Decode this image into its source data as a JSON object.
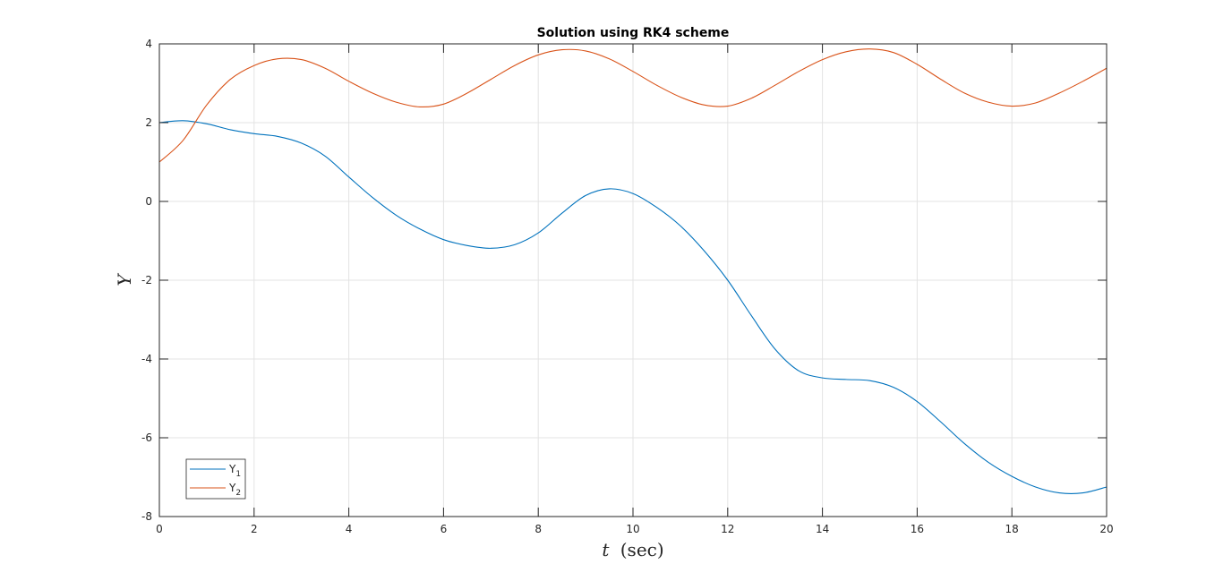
{
  "chart_data": {
    "type": "line",
    "title": "Solution using RK4 scheme",
    "xlabel_var": "t",
    "xlabel_unit": "(sec)",
    "ylabel": "Y",
    "xlim": [
      0,
      20
    ],
    "ylim": [
      -8,
      4
    ],
    "xticks": [
      0,
      2,
      4,
      6,
      8,
      10,
      12,
      14,
      16,
      18,
      20
    ],
    "yticks": [
      -8,
      -6,
      -4,
      -2,
      0,
      2,
      4
    ],
    "grid": true,
    "legend_position": "bottom-left",
    "series": [
      {
        "legend_main": "Y",
        "legend_sub": "1",
        "color": "#0072BD",
        "points": [
          [
            0,
            2.0
          ],
          [
            0.5,
            2.05
          ],
          [
            1,
            1.97
          ],
          [
            1.5,
            1.82
          ],
          [
            2,
            1.72
          ],
          [
            2.5,
            1.65
          ],
          [
            3,
            1.48
          ],
          [
            3.5,
            1.15
          ],
          [
            4,
            0.62
          ],
          [
            4.5,
            0.1
          ],
          [
            5,
            -0.35
          ],
          [
            5.5,
            -0.7
          ],
          [
            6,
            -0.97
          ],
          [
            6.5,
            -1.12
          ],
          [
            7,
            -1.19
          ],
          [
            7.5,
            -1.1
          ],
          [
            8,
            -0.8
          ],
          [
            8.5,
            -0.3
          ],
          [
            9,
            0.15
          ],
          [
            9.5,
            0.32
          ],
          [
            10,
            0.2
          ],
          [
            10.5,
            -0.15
          ],
          [
            11,
            -0.62
          ],
          [
            11.5,
            -1.25
          ],
          [
            12,
            -2.0
          ],
          [
            12.5,
            -2.9
          ],
          [
            13,
            -3.75
          ],
          [
            13.5,
            -4.3
          ],
          [
            14,
            -4.48
          ],
          [
            14.5,
            -4.52
          ],
          [
            15,
            -4.55
          ],
          [
            15.5,
            -4.72
          ],
          [
            16,
            -5.08
          ],
          [
            16.5,
            -5.6
          ],
          [
            17,
            -6.15
          ],
          [
            17.5,
            -6.62
          ],
          [
            18,
            -6.98
          ],
          [
            18.5,
            -7.25
          ],
          [
            19,
            -7.4
          ],
          [
            19.5,
            -7.4
          ],
          [
            20,
            -7.25
          ]
        ]
      },
      {
        "legend_main": "Y",
        "legend_sub": "2",
        "color": "#D95319",
        "points": [
          [
            0,
            1.0
          ],
          [
            0.5,
            1.55
          ],
          [
            1,
            2.45
          ],
          [
            1.5,
            3.1
          ],
          [
            2,
            3.45
          ],
          [
            2.5,
            3.62
          ],
          [
            3,
            3.6
          ],
          [
            3.5,
            3.38
          ],
          [
            4,
            3.05
          ],
          [
            4.5,
            2.75
          ],
          [
            5,
            2.52
          ],
          [
            5.5,
            2.4
          ],
          [
            6,
            2.47
          ],
          [
            6.5,
            2.75
          ],
          [
            7,
            3.1
          ],
          [
            7.5,
            3.45
          ],
          [
            8,
            3.72
          ],
          [
            8.5,
            3.85
          ],
          [
            9,
            3.82
          ],
          [
            9.5,
            3.62
          ],
          [
            10,
            3.3
          ],
          [
            10.5,
            2.95
          ],
          [
            11,
            2.65
          ],
          [
            11.5,
            2.45
          ],
          [
            12,
            2.42
          ],
          [
            12.5,
            2.62
          ],
          [
            13,
            2.95
          ],
          [
            13.5,
            3.3
          ],
          [
            14,
            3.6
          ],
          [
            14.5,
            3.8
          ],
          [
            15,
            3.87
          ],
          [
            15.5,
            3.78
          ],
          [
            16,
            3.48
          ],
          [
            16.5,
            3.1
          ],
          [
            17,
            2.75
          ],
          [
            17.5,
            2.52
          ],
          [
            18,
            2.42
          ],
          [
            18.5,
            2.5
          ],
          [
            19,
            2.75
          ],
          [
            19.5,
            3.05
          ],
          [
            20,
            3.38
          ]
        ]
      }
    ]
  }
}
